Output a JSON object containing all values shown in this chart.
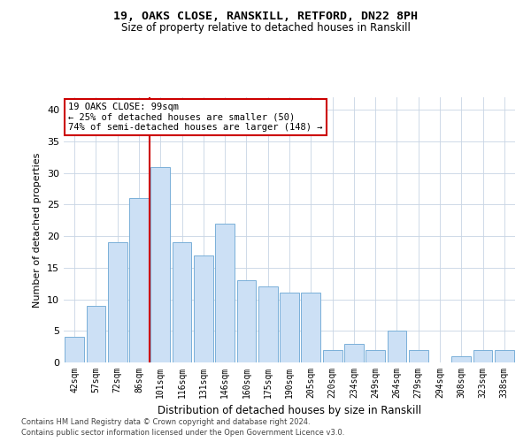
{
  "title_line1": "19, OAKS CLOSE, RANSKILL, RETFORD, DN22 8PH",
  "title_line2": "Size of property relative to detached houses in Ranskill",
  "xlabel": "Distribution of detached houses by size in Ranskill",
  "ylabel": "Number of detached properties",
  "categories": [
    "42sqm",
    "57sqm",
    "72sqm",
    "86sqm",
    "101sqm",
    "116sqm",
    "131sqm",
    "146sqm",
    "160sqm",
    "175sqm",
    "190sqm",
    "205sqm",
    "220sqm",
    "234sqm",
    "249sqm",
    "264sqm",
    "279sqm",
    "294sqm",
    "308sqm",
    "323sqm",
    "338sqm"
  ],
  "values": [
    4,
    9,
    19,
    26,
    31,
    19,
    17,
    22,
    13,
    12,
    11,
    11,
    2,
    3,
    2,
    5,
    2,
    0,
    1,
    2,
    2
  ],
  "bar_color": "#cce0f5",
  "bar_edge_color": "#7ab0d8",
  "vline_x": 3.5,
  "vline_color": "#cc0000",
  "annotation_text": "19 OAKS CLOSE: 99sqm\n← 25% of detached houses are smaller (50)\n74% of semi-detached houses are larger (148) →",
  "annotation_box_color": "#ffffff",
  "annotation_box_edge": "#cc0000",
  "ylim": [
    0,
    42
  ],
  "yticks": [
    0,
    5,
    10,
    15,
    20,
    25,
    30,
    35,
    40
  ],
  "footer_line1": "Contains HM Land Registry data © Crown copyright and database right 2024.",
  "footer_line2": "Contains public sector information licensed under the Open Government Licence v3.0.",
  "background_color": "#ffffff",
  "grid_color": "#c8d4e4"
}
